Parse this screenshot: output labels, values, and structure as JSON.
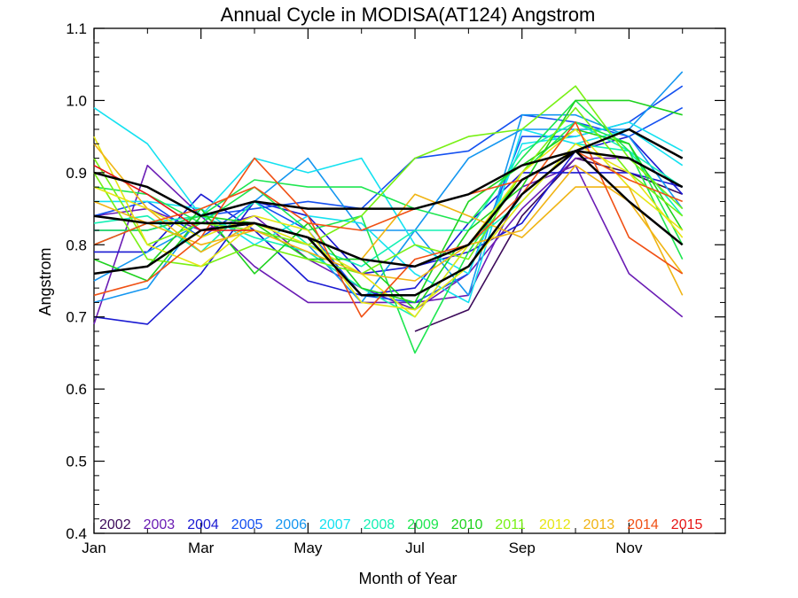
{
  "chart_data": {
    "type": "line",
    "title": "Annual Cycle in MODISA(AT124) Angstrom",
    "xlabel": "Month of Year",
    "ylabel": "Angstrom",
    "xlim": [
      1,
      12.8
    ],
    "ylim": [
      0.4,
      1.1
    ],
    "x_ticks": [
      {
        "value": 1,
        "label": "Jan"
      },
      {
        "value": 3,
        "label": "Mar"
      },
      {
        "value": 5,
        "label": "May"
      },
      {
        "value": 7,
        "label": "Jul"
      },
      {
        "value": 9,
        "label": "Sep"
      },
      {
        "value": 11,
        "label": "Nov"
      }
    ],
    "y_ticks": [
      0.4,
      0.5,
      0.6,
      0.7,
      0.8,
      0.9,
      1.0,
      1.1
    ],
    "y_tick_labels": [
      "0.4",
      "0.5",
      "0.6",
      "0.7",
      "0.8",
      "0.9",
      "1.0",
      "1.1"
    ],
    "grid": false,
    "legend_position": "bottom-inside",
    "x": [
      1,
      2,
      3,
      4,
      5,
      6,
      7,
      8,
      9,
      10,
      11,
      12
    ],
    "series": [
      {
        "name": "2002",
        "color": "#3c0a5a",
        "values": [
          null,
          null,
          null,
          null,
          null,
          null,
          0.68,
          0.71,
          0.84,
          0.92,
          0.9,
          0.87
        ]
      },
      {
        "name": "2003",
        "color": "#6a1cb4",
        "values": [
          0.69,
          0.91,
          0.84,
          0.77,
          0.72,
          0.72,
          0.72,
          0.73,
          0.88,
          0.91,
          0.76,
          0.7
        ]
      },
      {
        "name": "2003",
        "color": "#6a1cb4",
        "values": [
          0.84,
          0.85,
          0.82,
          0.84,
          0.78,
          0.74,
          0.71,
          0.76,
          0.85,
          0.92,
          0.92,
          0.88
        ]
      },
      {
        "name": "2004",
        "color": "#1a1ad2",
        "values": [
          0.7,
          0.69,
          0.76,
          0.86,
          0.84,
          0.76,
          0.77,
          0.79,
          0.83,
          0.93,
          0.95,
          0.87
        ]
      },
      {
        "name": "2004",
        "color": "#1a1ad2",
        "values": [
          0.79,
          0.79,
          0.87,
          0.82,
          0.75,
          0.73,
          0.74,
          0.83,
          0.9,
          0.9,
          0.9,
          0.88
        ]
      },
      {
        "name": "2005",
        "color": "#1450f0",
        "values": [
          0.82,
          0.82,
          0.84,
          0.85,
          0.86,
          0.85,
          0.92,
          0.93,
          0.98,
          0.97,
          0.95,
          0.99
        ]
      },
      {
        "name": "2005",
        "color": "#1450f0",
        "values": [
          0.84,
          0.86,
          0.81,
          0.86,
          0.82,
          0.73,
          0.72,
          0.76,
          0.95,
          0.95,
          0.97,
          1.02
        ]
      },
      {
        "name": "2006",
        "color": "#1496f0",
        "values": [
          0.72,
          0.74,
          0.84,
          0.86,
          0.92,
          0.82,
          0.82,
          0.92,
          0.96,
          0.96,
          0.96,
          1.04
        ]
      },
      {
        "name": "2006",
        "color": "#1496f0",
        "values": [
          0.75,
          0.79,
          0.83,
          0.82,
          0.8,
          0.72,
          0.82,
          0.73,
          0.98,
          0.98,
          0.95,
          0.85
        ]
      },
      {
        "name": "2007",
        "color": "#14e1f0",
        "values": [
          0.99,
          0.94,
          0.84,
          0.92,
          0.9,
          0.92,
          0.8,
          0.76,
          0.94,
          0.95,
          0.97,
          0.93
        ]
      },
      {
        "name": "2007",
        "color": "#14e1f0",
        "values": [
          0.86,
          0.86,
          0.85,
          0.8,
          0.84,
          0.83,
          0.76,
          0.72,
          0.96,
          0.94,
          0.96,
          0.91
        ]
      },
      {
        "name": "2008",
        "color": "#14f0b4",
        "values": [
          0.83,
          0.84,
          0.79,
          0.86,
          0.8,
          0.77,
          0.82,
          0.82,
          0.93,
          0.97,
          0.93,
          0.84
        ]
      },
      {
        "name": "2008",
        "color": "#14f0b4",
        "values": [
          0.8,
          0.83,
          0.84,
          0.81,
          0.79,
          0.74,
          0.7,
          0.8,
          0.86,
          0.94,
          0.93,
          0.88
        ]
      },
      {
        "name": "2009",
        "color": "#1ee650",
        "values": [
          0.88,
          0.87,
          0.83,
          0.88,
          0.82,
          0.84,
          0.65,
          0.79,
          0.9,
          0.97,
          0.94,
          0.8
        ]
      },
      {
        "name": "2009",
        "color": "#1ee650",
        "values": [
          0.82,
          0.82,
          0.84,
          0.89,
          0.88,
          0.88,
          0.85,
          0.83,
          0.92,
          1.0,
          0.93,
          0.78
        ]
      },
      {
        "name": "2010",
        "color": "#1ed21e",
        "values": [
          0.78,
          0.75,
          0.84,
          0.83,
          0.78,
          0.78,
          0.71,
          0.82,
          0.88,
          1.0,
          1.0,
          0.98
        ]
      },
      {
        "name": "2010",
        "color": "#1ed21e",
        "values": [
          0.76,
          0.77,
          0.85,
          0.76,
          0.83,
          0.74,
          0.72,
          0.86,
          0.91,
          0.96,
          0.94,
          0.82
        ]
      },
      {
        "name": "2011",
        "color": "#78f014",
        "values": [
          0.92,
          0.8,
          0.83,
          0.82,
          0.8,
          0.84,
          0.92,
          0.95,
          0.96,
          1.02,
          0.92,
          0.85
        ]
      },
      {
        "name": "2011",
        "color": "#78f014",
        "values": [
          0.9,
          0.78,
          0.77,
          0.8,
          0.78,
          0.76,
          0.8,
          0.78,
          0.9,
          0.99,
          0.9,
          0.84
        ]
      },
      {
        "name": "2012",
        "color": "#e6e614",
        "values": [
          0.95,
          0.8,
          0.77,
          0.83,
          0.8,
          0.76,
          0.7,
          0.8,
          0.9,
          0.96,
          0.88,
          0.82
        ]
      },
      {
        "name": "2012",
        "color": "#e6e614",
        "values": [
          0.88,
          0.85,
          0.81,
          0.84,
          0.82,
          0.72,
          0.71,
          0.77,
          0.86,
          0.94,
          0.9,
          0.81
        ]
      },
      {
        "name": "2013",
        "color": "#f0b414",
        "values": [
          0.94,
          0.85,
          0.79,
          0.83,
          0.81,
          0.78,
          0.87,
          0.84,
          0.81,
          0.88,
          0.88,
          0.73
        ]
      },
      {
        "name": "2013",
        "color": "#f0b414",
        "values": [
          0.86,
          0.83,
          0.8,
          0.82,
          0.79,
          0.76,
          0.75,
          0.8,
          0.82,
          0.91,
          0.86,
          0.76
        ]
      },
      {
        "name": "2014",
        "color": "#f05014",
        "values": [
          0.73,
          0.75,
          0.81,
          0.92,
          0.84,
          0.7,
          0.78,
          0.8,
          0.87,
          0.97,
          0.81,
          0.76
        ]
      },
      {
        "name": "2014",
        "color": "#f05014",
        "values": [
          0.8,
          0.83,
          0.85,
          0.88,
          0.83,
          0.82,
          0.85,
          0.87,
          0.89,
          0.93,
          0.89,
          0.86
        ]
      },
      {
        "name": "2015",
        "color": "#e61414",
        "values": [
          0.91,
          0.87,
          0.82,
          0.82,
          null,
          null,
          null,
          null,
          null,
          null,
          null,
          null
        ]
      },
      {
        "name": "",
        "color": "#000000",
        "width": 2.5,
        "values": [
          0.9,
          0.88,
          0.84,
          0.86,
          0.85,
          0.85,
          0.85,
          0.87,
          0.91,
          0.93,
          0.92,
          0.88
        ]
      },
      {
        "name": "",
        "color": "#000000",
        "width": 2.5,
        "values": [
          0.84,
          0.83,
          0.83,
          0.83,
          0.81,
          0.78,
          0.77,
          0.8,
          0.89,
          0.93,
          0.96,
          0.92
        ]
      },
      {
        "name": "",
        "color": "#000000",
        "width": 2.5,
        "values": [
          0.76,
          0.77,
          0.82,
          0.83,
          0.81,
          0.73,
          0.73,
          0.77,
          0.87,
          0.93,
          0.86,
          0.8
        ]
      }
    ],
    "legend": [
      {
        "label": "2002",
        "color": "#3c0a5a"
      },
      {
        "label": "2003",
        "color": "#6a1cb4"
      },
      {
        "label": "2004",
        "color": "#1a1ad2"
      },
      {
        "label": "2005",
        "color": "#1450f0"
      },
      {
        "label": "2006",
        "color": "#1496f0"
      },
      {
        "label": "2007",
        "color": "#14e1f0"
      },
      {
        "label": "2008",
        "color": "#14f0b4"
      },
      {
        "label": "2009",
        "color": "#1ee650"
      },
      {
        "label": "2010",
        "color": "#1ed21e"
      },
      {
        "label": "2011",
        "color": "#78f014"
      },
      {
        "label": "2012",
        "color": "#e6e614"
      },
      {
        "label": "2013",
        "color": "#f0b414"
      },
      {
        "label": "2014",
        "color": "#f05014"
      },
      {
        "label": "2015",
        "color": "#e61414"
      }
    ]
  }
}
